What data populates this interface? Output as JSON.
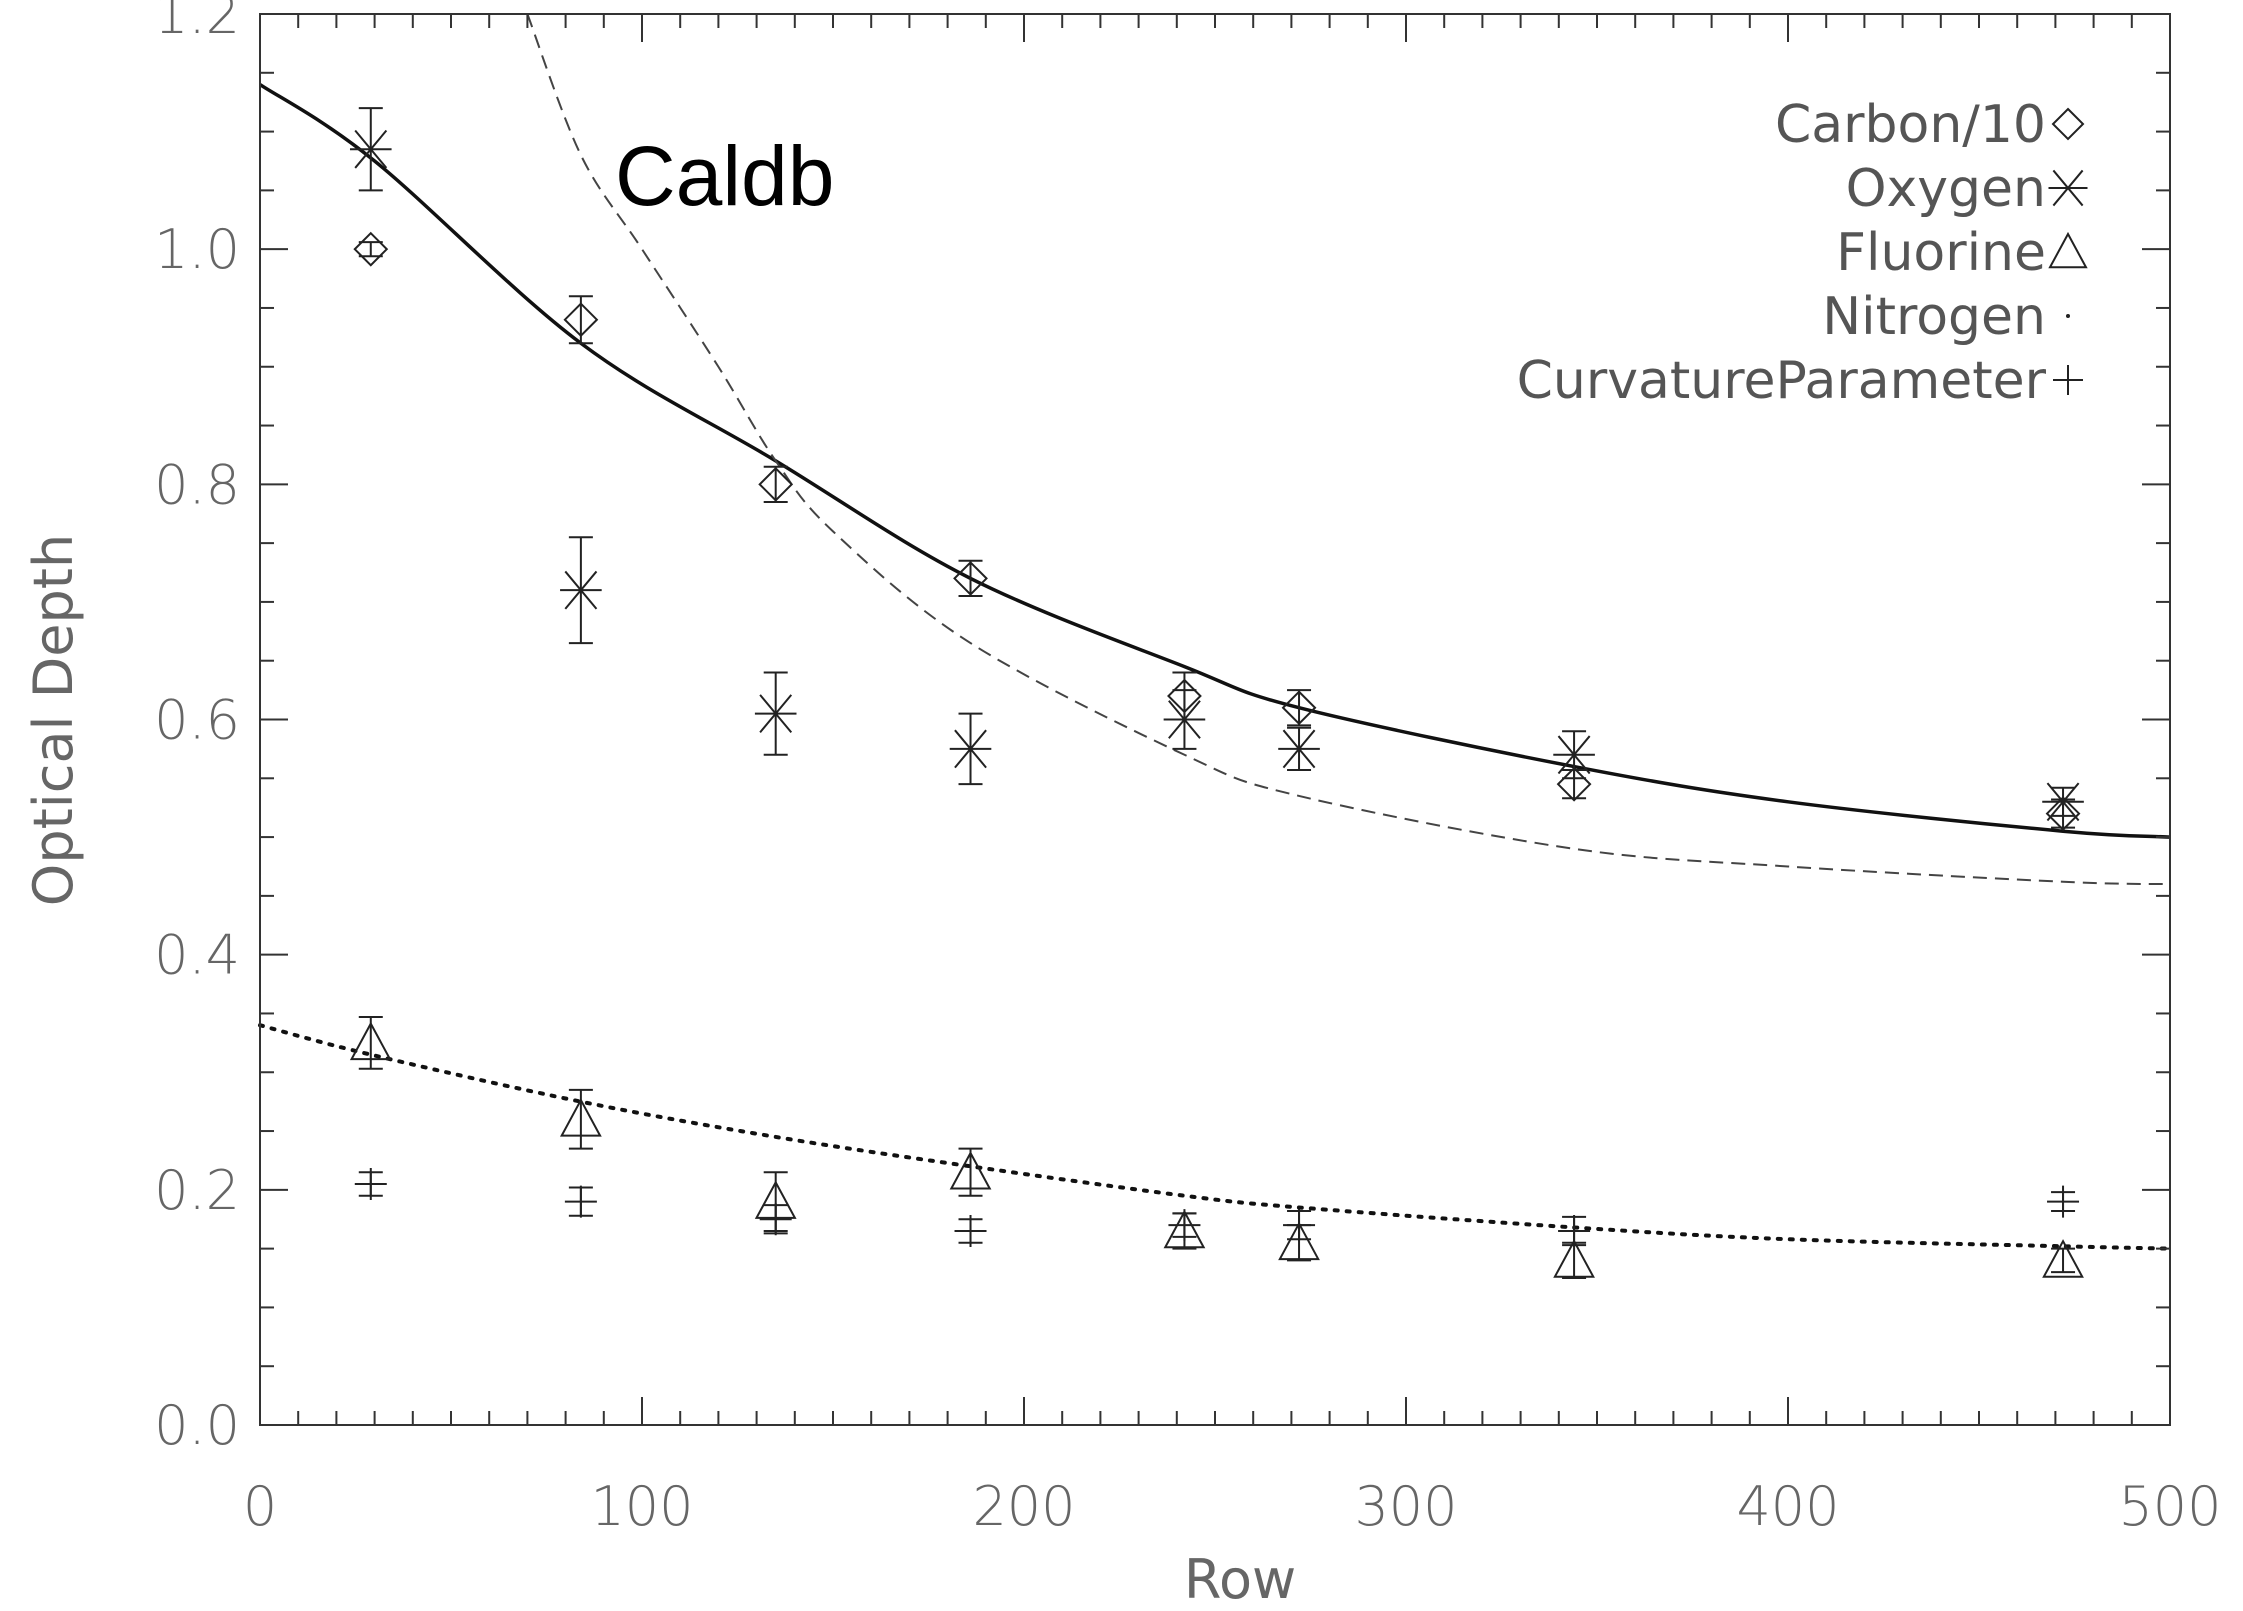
{
  "chart_data": {
    "type": "scatter",
    "xlabel": "Row",
    "ylabel": "Optical Depth",
    "xlim": [
      0,
      500
    ],
    "ylim": [
      0,
      1.2
    ],
    "x_ticks": [
      "0",
      "100",
      "200",
      "300",
      "400",
      "500"
    ],
    "y_ticks": [
      "0.0",
      "0.2",
      "0.4",
      "0.6",
      "0.8",
      "1.0",
      "1.2"
    ],
    "x_tick_values": [
      0,
      100,
      200,
      300,
      400,
      500
    ],
    "y_tick_values": [
      0,
      0.2,
      0.4,
      0.6,
      0.8,
      1.0,
      1.2
    ],
    "grid": false,
    "legend_position": "top-right",
    "annotation": "Caldb",
    "series": [
      {
        "name": "Carbon/10",
        "marker": "diamond",
        "x": [
          29,
          84,
          135,
          186,
          242,
          272,
          344,
          472
        ],
        "y": [
          1.0,
          0.94,
          0.8,
          0.72,
          0.62,
          0.61,
          0.545,
          0.52
        ],
        "err": [
          0.006,
          0.02,
          0.015,
          0.015,
          0.02,
          0.015,
          0.012,
          0.012
        ]
      },
      {
        "name": "Oxygen",
        "marker": "asterisk",
        "x": [
          29,
          84,
          135,
          186,
          242,
          272,
          344,
          472
        ],
        "y": [
          1.085,
          0.71,
          0.605,
          0.575,
          0.6,
          0.575,
          0.57,
          0.53
        ],
        "err": [
          0.035,
          0.045,
          0.035,
          0.03,
          0.025,
          0.018,
          0.02,
          0.012
        ]
      },
      {
        "name": "Fluorine",
        "marker": "triangle",
        "x": [
          29,
          84,
          135,
          186,
          242,
          272,
          344,
          472
        ],
        "y": [
          0.325,
          0.26,
          0.19,
          0.215,
          0.165,
          0.155,
          0.14,
          0.14
        ],
        "err": [
          0.022,
          0.025,
          0.025,
          0.02,
          0.015,
          0.015,
          0.015,
          0.01
        ]
      },
      {
        "name": "Nitrogen",
        "marker": "dot",
        "x": [],
        "y": []
      },
      {
        "name": "CurvatureParameter",
        "marker": "plus",
        "x": [
          29,
          84,
          135,
          186,
          242,
          272,
          344,
          472
        ],
        "y": [
          0.205,
          0.19,
          0.175,
          0.165,
          0.17,
          0.17,
          0.165,
          0.19
        ],
        "err": [
          0.01,
          0.012,
          0.012,
          0.01,
          0.01,
          0.012,
          0.012,
          0.008
        ]
      }
    ],
    "curves": [
      {
        "style": "solid",
        "x": [
          0,
          30,
          84,
          135,
          186,
          242,
          272,
          344,
          400,
          472,
          500
        ],
        "y": [
          1.14,
          1.075,
          0.92,
          0.82,
          0.72,
          0.645,
          0.61,
          0.56,
          0.53,
          0.505,
          0.5
        ]
      },
      {
        "style": "dashed",
        "x": [
          70,
          84,
          100,
          120,
          135,
          150,
          186,
          242,
          272,
          344,
          400,
          472,
          500
        ],
        "y": [
          1.2,
          1.08,
          1.0,
          0.9,
          0.82,
          0.76,
          0.665,
          0.57,
          0.535,
          0.49,
          0.475,
          0.462,
          0.46
        ]
      },
      {
        "style": "dotted",
        "x": [
          0,
          29,
          84,
          135,
          186,
          242,
          272,
          344,
          400,
          472,
          500
        ],
        "y": [
          0.34,
          0.315,
          0.275,
          0.245,
          0.22,
          0.195,
          0.185,
          0.168,
          0.158,
          0.152,
          0.15
        ]
      }
    ]
  }
}
